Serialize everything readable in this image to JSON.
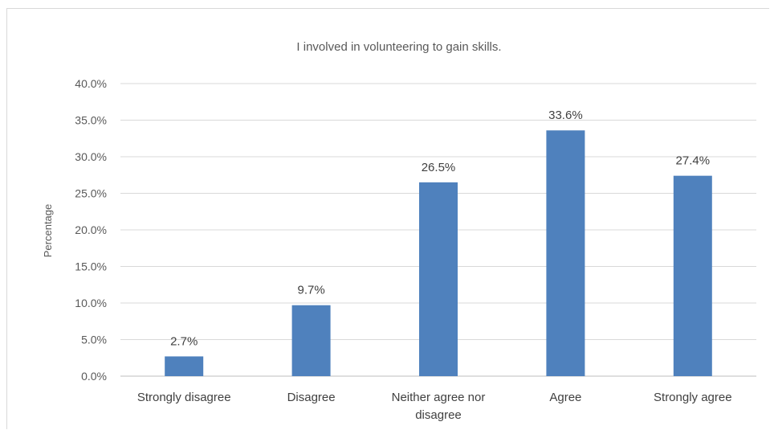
{
  "chart_data": {
    "type": "bar",
    "title": "I involved in volunteering to gain skills.",
    "xlabel": "",
    "ylabel": "Percentage",
    "categories": [
      "Strongly disagree",
      "Disagree",
      "Neither agree nor disagree",
      "Agree",
      "Strongly agree"
    ],
    "category_lines": [
      [
        "Strongly disagree"
      ],
      [
        "Disagree"
      ],
      [
        "Neither agree nor",
        "disagree"
      ],
      [
        "Agree"
      ],
      [
        "Strongly agree"
      ]
    ],
    "values": [
      2.7,
      9.7,
      26.5,
      33.6,
      27.4
    ],
    "data_labels": [
      "2.7%",
      "9.7%",
      "26.5%",
      "33.6%",
      "27.4%"
    ],
    "ylim": [
      0,
      40
    ],
    "yticks": [
      0,
      5,
      10,
      15,
      20,
      25,
      30,
      35,
      40
    ],
    "ytick_labels": [
      "0.0%",
      "5.0%",
      "10.0%",
      "15.0%",
      "20.0%",
      "25.0%",
      "30.0%",
      "35.0%",
      "40.0%"
    ],
    "grid": true,
    "legend": "none",
    "bar_color": "#4f81bd",
    "grid_color": "#d9d9d9"
  }
}
